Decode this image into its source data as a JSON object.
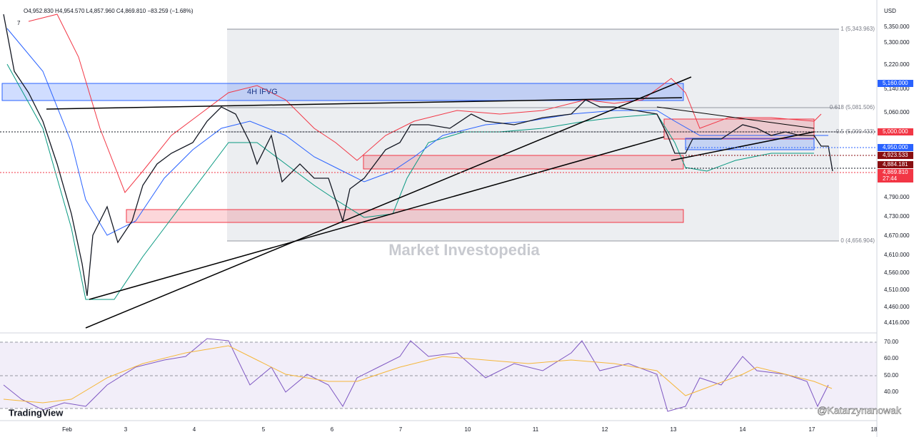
{
  "header": {
    "ohlc": "O4,952.830 H4,954.570 L4,857.960 C4,869.810 −83.259 (−1.68%)",
    "indicator_count": "7"
  },
  "price_axis": {
    "currency": "USD",
    "labels": [
      "5,350.000",
      "5,300.000",
      "5,220.000",
      "5,140.000",
      "5,060.000",
      "4,790.000",
      "4,730.000",
      "4,670.000",
      "4,610.000",
      "4,560.000",
      "4,510.000",
      "4,460.000",
      "4,416.000"
    ],
    "badges": [
      "5,160.000",
      "5,000.000",
      "4,950.000",
      "4,923.533",
      "4,884.181",
      "4,869.810",
      "27:44"
    ]
  },
  "rsi_axis": {
    "labels": [
      "70.00",
      "60.00",
      "50.00",
      "40.00"
    ]
  },
  "date_axis": {
    "labels": [
      "Feb",
      "3",
      "4",
      "5",
      "6",
      "7",
      "10",
      "11",
      "12",
      "13",
      "14",
      "17",
      "18"
    ]
  },
  "annotations": {
    "zone": "4H IFVG",
    "watermark": "Market Investopedia",
    "fib": [
      "1 (5,343.963)",
      "0.618 (5,081.506)",
      "0.5 (5,000.433)",
      "0 (4,656.904)"
    ]
  },
  "branding": {
    "logo": "TradingView",
    "author": "@Katarzynanowak"
  }
}
